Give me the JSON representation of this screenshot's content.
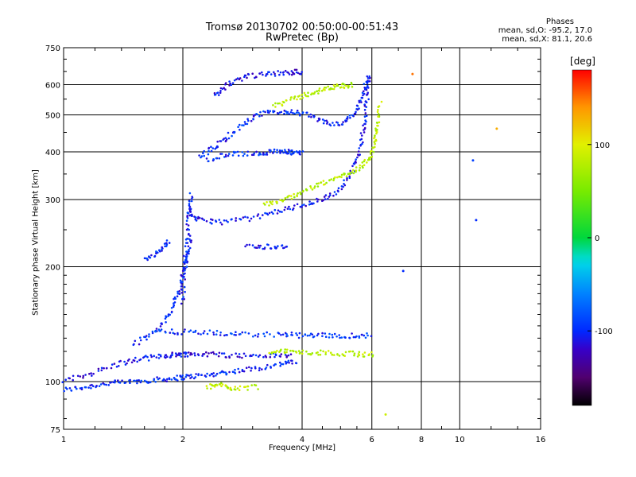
{
  "title_line1": "Tromsø 20130702 00:50:00-00:51:43",
  "title_line2": "RwPretec (Bp)",
  "phases": {
    "heading": "Phases",
    "line_o": "mean, sd,O: -95.2, 17.0",
    "line_x": "mean, sd,X:  81.1, 20.6"
  },
  "colorbar": {
    "title": "[deg]",
    "ticks": [
      {
        "value": 100,
        "label": "100"
      },
      {
        "value": 0,
        "label": "0"
      },
      {
        "value": -100,
        "label": "-100"
      }
    ],
    "range": [
      -180,
      180
    ]
  },
  "chart_data": {
    "type": "scatter",
    "title": "Tromsø 20130702 00:50:00-00:51:43",
    "subtitle": "RwPretec (Bp)",
    "xlabel": "Frequency [MHz]",
    "ylabel": "Stationary phase Virtual Height [km]",
    "x_scale": "log",
    "y_scale": "log",
    "xlim": [
      1,
      16
    ],
    "ylim": [
      75,
      750
    ],
    "x_ticks": [
      1,
      2,
      4,
      6,
      8,
      10,
      16
    ],
    "y_ticks": [
      75,
      100,
      200,
      300,
      400,
      500,
      600,
      750
    ],
    "grid": true,
    "color_by": "phase [deg]",
    "traces": [
      {
        "x": [
          1.0,
          1.15,
          1.3,
          1.5,
          1.7,
          1.9,
          2.05,
          2.3,
          2.6,
          3.0,
          3.5,
          3.9
        ],
        "y": [
          95,
          97,
          99,
          100,
          101,
          102,
          103,
          104,
          106,
          108,
          111,
          113
        ],
        "phase": -100
      },
      {
        "x": [
          1.0,
          1.2,
          1.4,
          1.6,
          1.8,
          1.95,
          2.1,
          2.4,
          2.8,
          3.3,
          3.8
        ],
        "y": [
          100,
          106,
          112,
          115,
          117,
          118,
          118,
          118,
          117,
          117,
          117
        ],
        "phase": -110
      },
      {
        "x": [
          1.5,
          1.7,
          1.85,
          1.95,
          2.0,
          2.05,
          2.1
        ],
        "y": [
          125,
          135,
          150,
          170,
          190,
          210,
          240
        ],
        "phase": -100
      },
      {
        "x": [
          2.0,
          2.02,
          2.05,
          2.08,
          2.1
        ],
        "y": [
          160,
          200,
          240,
          280,
          310
        ],
        "phase": -100
      },
      {
        "x": [
          2.05,
          2.2,
          2.5,
          3.0,
          3.5,
          4.0,
          4.5,
          5.0,
          5.4,
          5.6,
          5.75,
          5.85,
          5.9
        ],
        "y": [
          280,
          265,
          262,
          268,
          280,
          290,
          300,
          320,
          360,
          410,
          480,
          560,
          640
        ],
        "phase": -105
      },
      {
        "x": [
          3.2,
          3.6,
          4.0,
          4.5,
          5.0,
          5.5,
          5.9,
          6.1,
          6.2,
          6.3
        ],
        "y": [
          290,
          300,
          315,
          330,
          345,
          360,
          380,
          420,
          470,
          540
        ],
        "phase": 80
      },
      {
        "x": [
          2.2,
          2.4,
          2.6,
          2.9,
          3.2,
          3.6,
          4.0,
          4.5,
          5.0,
          5.4,
          5.7,
          5.85
        ],
        "y": [
          390,
          410,
          440,
          480,
          505,
          510,
          505,
          480,
          470,
          500,
          560,
          630
        ],
        "phase": -100
      },
      {
        "x": [
          2.4,
          2.6,
          2.9,
          3.3,
          3.7,
          4.0
        ],
        "y": [
          560,
          600,
          630,
          640,
          645,
          650
        ],
        "phase": -110
      },
      {
        "x": [
          3.4,
          3.8,
          4.2,
          4.6,
          5.0,
          5.4
        ],
        "y": [
          530,
          550,
          570,
          585,
          595,
          600
        ],
        "phase": 80
      },
      {
        "x": [
          2.3,
          2.6,
          3.0,
          3.3,
          3.6,
          3.8,
          4.0
        ],
        "y": [
          380,
          395,
          395,
          400,
          400,
          398,
          400
        ],
        "phase": -100
      },
      {
        "x": [
          2.9,
          3.3,
          3.7
        ],
        "y": [
          226,
          226,
          226
        ],
        "phase": -105
      },
      {
        "x": [
          1.7,
          2.0,
          2.4,
          2.8,
          3.5,
          4.0,
          4.6,
          5.3,
          6.0
        ],
        "y": [
          135,
          135,
          134,
          133,
          133,
          132,
          132,
          132,
          132
        ],
        "phase": -95
      },
      {
        "x": [
          3.3,
          3.7,
          4.2,
          4.8,
          5.5,
          6.1
        ],
        "y": [
          120,
          120,
          119,
          119,
          118,
          118
        ],
        "phase": 80
      },
      {
        "x": [
          2.3,
          2.5,
          2.7,
          3.1
        ],
        "y": [
          97,
          98,
          96,
          97
        ],
        "phase": 85
      },
      {
        "x": [
          1.6,
          1.75,
          1.85
        ],
        "y": [
          210,
          220,
          235
        ],
        "phase": -100
      }
    ],
    "isolated_points": [
      {
        "x": 12.4,
        "y": 460,
        "phase": 130
      },
      {
        "x": 11.0,
        "y": 265,
        "phase": -100
      },
      {
        "x": 10.8,
        "y": 380,
        "phase": -90
      },
      {
        "x": 7.6,
        "y": 640,
        "phase": 150
      },
      {
        "x": 6.5,
        "y": 82,
        "phase": 90
      },
      {
        "x": 7.2,
        "y": 195,
        "phase": -100
      }
    ]
  }
}
